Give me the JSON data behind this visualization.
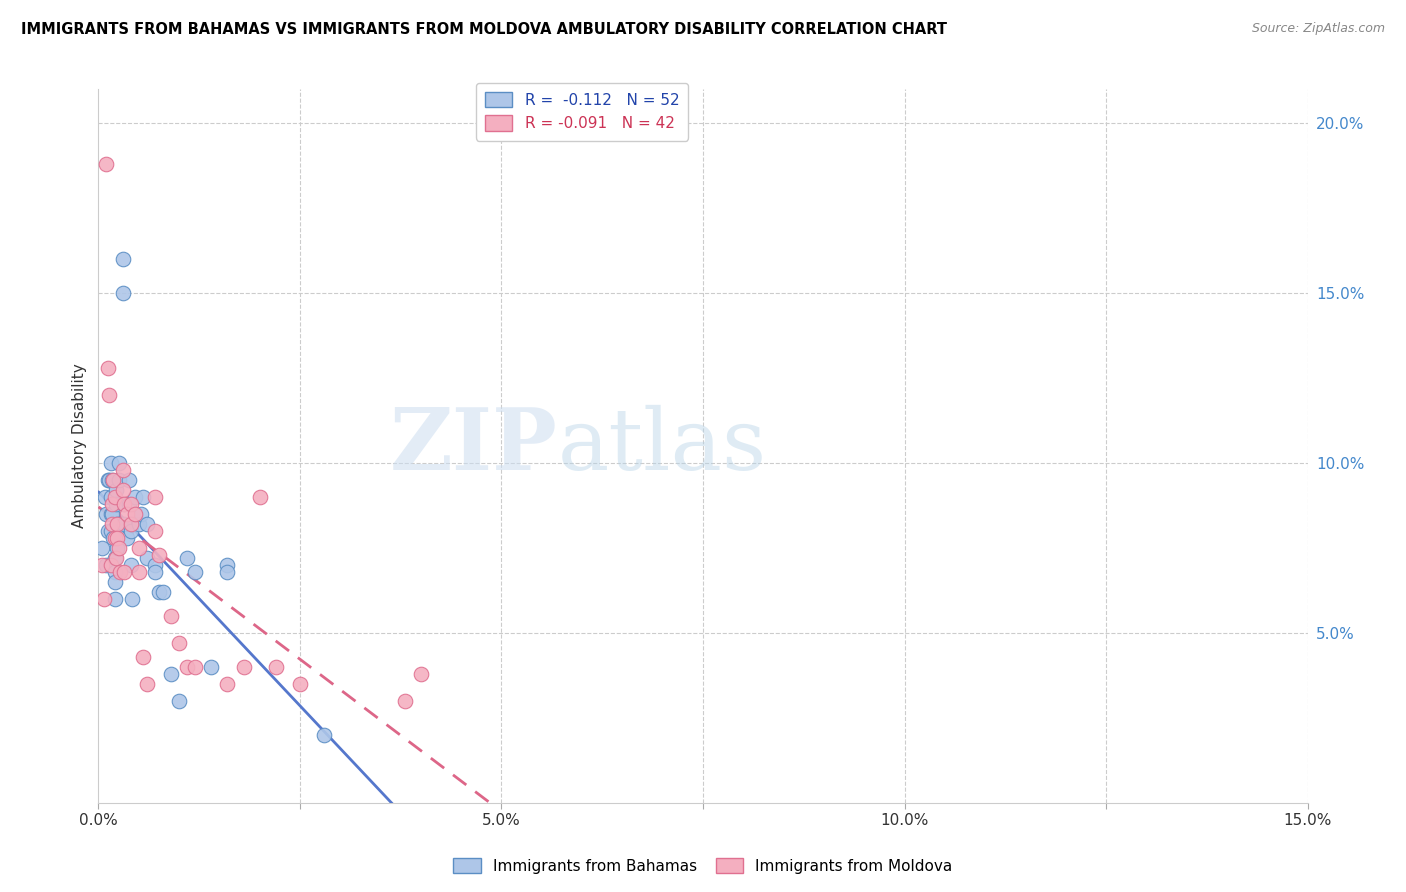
{
  "title": "IMMIGRANTS FROM BAHAMAS VS IMMIGRANTS FROM MOLDOVA AMBULATORY DISABILITY CORRELATION CHART",
  "source": "Source: ZipAtlas.com",
  "ylabel": "Ambulatory Disability",
  "xlim": [
    0.0,
    0.15
  ],
  "ylim": [
    0.0,
    0.21
  ],
  "xtick_positions": [
    0.0,
    0.025,
    0.05,
    0.075,
    0.1,
    0.125,
    0.15
  ],
  "xtick_labels": [
    "0.0%",
    "",
    "5.0%",
    "",
    "10.0%",
    "",
    "15.0%"
  ],
  "ytick_right_positions": [
    0.05,
    0.1,
    0.15,
    0.2
  ],
  "ytick_right_labels": [
    "5.0%",
    "10.0%",
    "15.0%",
    "20.0%"
  ],
  "watermark": "ZIPatlas",
  "legend_r1": "R =  -0.112   N = 52",
  "legend_r2": "R = -0.091   N = 42",
  "color_bahamas_fill": "#aec6e8",
  "color_bahamas_edge": "#5b8ec4",
  "color_moldova_fill": "#f4afc0",
  "color_moldova_edge": "#e07090",
  "color_line_bahamas": "#5577cc",
  "color_line_moldova": "#dd6688",
  "bahamas_x": [
    0.0005,
    0.0008,
    0.001,
    0.001,
    0.0012,
    0.0012,
    0.0013,
    0.0015,
    0.0015,
    0.0015,
    0.0016,
    0.0017,
    0.0017,
    0.0018,
    0.002,
    0.002,
    0.002,
    0.002,
    0.0022,
    0.0022,
    0.0023,
    0.0023,
    0.0025,
    0.0025,
    0.003,
    0.003,
    0.0032,
    0.0032,
    0.0035,
    0.0038,
    0.0038,
    0.004,
    0.004,
    0.0042,
    0.0045,
    0.005,
    0.0053,
    0.0055,
    0.006,
    0.006,
    0.007,
    0.007,
    0.0075,
    0.008,
    0.009,
    0.01,
    0.011,
    0.012,
    0.014,
    0.016,
    0.016,
    0.028
  ],
  "bahamas_y": [
    0.075,
    0.09,
    0.085,
    0.07,
    0.095,
    0.08,
    0.095,
    0.09,
    0.1,
    0.085,
    0.08,
    0.095,
    0.085,
    0.078,
    0.072,
    0.068,
    0.065,
    0.06,
    0.092,
    0.088,
    0.082,
    0.075,
    0.1,
    0.095,
    0.16,
    0.15,
    0.088,
    0.082,
    0.078,
    0.095,
    0.088,
    0.08,
    0.07,
    0.06,
    0.09,
    0.082,
    0.085,
    0.09,
    0.082,
    0.072,
    0.07,
    0.068,
    0.062,
    0.062,
    0.038,
    0.03,
    0.072,
    0.068,
    0.04,
    0.07,
    0.068,
    0.02
  ],
  "moldova_x": [
    0.0005,
    0.0007,
    0.001,
    0.0012,
    0.0013,
    0.0015,
    0.0017,
    0.0017,
    0.0018,
    0.002,
    0.002,
    0.0022,
    0.0023,
    0.0023,
    0.0025,
    0.0027,
    0.003,
    0.003,
    0.0032,
    0.0032,
    0.0035,
    0.004,
    0.004,
    0.0045,
    0.005,
    0.005,
    0.0055,
    0.006,
    0.007,
    0.007,
    0.0075,
    0.009,
    0.01,
    0.011,
    0.012,
    0.016,
    0.018,
    0.02,
    0.022,
    0.025,
    0.038,
    0.04
  ],
  "moldova_y": [
    0.07,
    0.06,
    0.188,
    0.128,
    0.12,
    0.07,
    0.088,
    0.082,
    0.095,
    0.09,
    0.078,
    0.072,
    0.082,
    0.078,
    0.075,
    0.068,
    0.098,
    0.092,
    0.068,
    0.088,
    0.085,
    0.082,
    0.088,
    0.085,
    0.075,
    0.068,
    0.043,
    0.035,
    0.09,
    0.08,
    0.073,
    0.055,
    0.047,
    0.04,
    0.04,
    0.035,
    0.04,
    0.09,
    0.04,
    0.035,
    0.03,
    0.038
  ]
}
